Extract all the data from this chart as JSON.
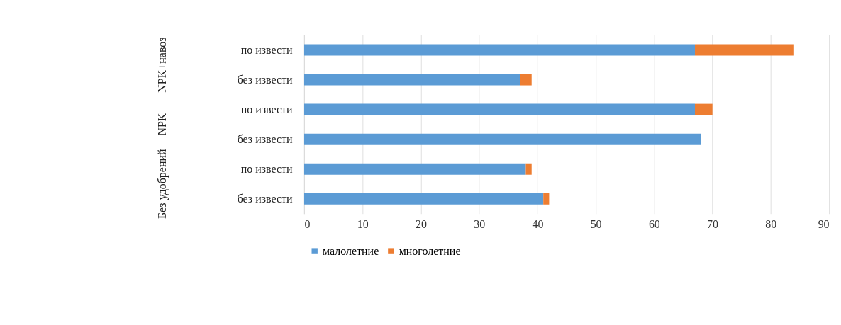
{
  "chart_data": {
    "type": "bar",
    "orientation": "horizontal",
    "stacked": true,
    "categories": [
      "по извести",
      "без извести",
      "по извести",
      "без извести",
      "по извести",
      "без извести"
    ],
    "series": [
      {
        "name": "малолетние",
        "color": "#5b9bd5",
        "values": [
          67,
          37,
          67,
          68,
          38,
          41
        ]
      },
      {
        "name": "многолетние",
        "color": "#ed7d31",
        "values": [
          17,
          2,
          3,
          0,
          1,
          1
        ]
      }
    ],
    "annotations": [
      "NPK+навоз",
      "NPK",
      "Без удобрений"
    ],
    "xlim": [
      0,
      90
    ],
    "xticks": [
      0,
      10,
      20,
      30,
      40,
      50,
      60,
      70,
      80,
      90
    ],
    "grid": "x",
    "legend": "bottom"
  }
}
